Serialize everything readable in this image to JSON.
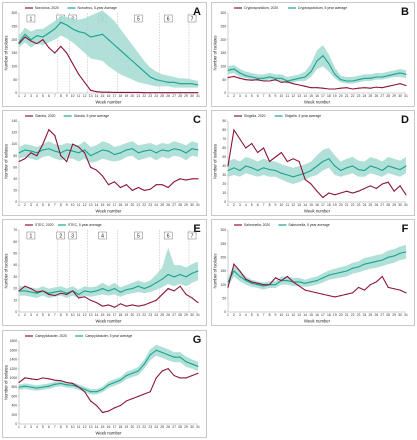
{
  "colors": {
    "current": "#8b1538",
    "average": "#1aa38f",
    "band": "#a9ddd4"
  },
  "chart_data": [
    {
      "label": "A",
      "type": "line",
      "legend": [
        "Norovirus, 2020",
        "Norovirus, 5-year Average"
      ],
      "ylabel": "Number of isolates",
      "xlabel": "Week number",
      "ylim": [
        0,
        300
      ],
      "yticks": [
        0,
        50,
        100,
        150,
        200,
        250,
        300
      ],
      "period_labels": [
        "1",
        "2",
        "3",
        "4",
        "5",
        "6",
        "7"
      ],
      "period_weeks": [
        3,
        8,
        10,
        15,
        21,
        26,
        30
      ],
      "period_boundaries": [
        7,
        9,
        12,
        17,
        24,
        29
      ],
      "weeks": [
        1,
        2,
        3,
        4,
        5,
        6,
        7,
        8,
        9,
        10,
        11,
        12,
        13,
        14,
        15,
        16,
        17,
        18,
        19,
        20,
        21,
        22,
        23,
        24,
        25,
        26,
        27,
        28,
        29,
        30,
        31
      ],
      "current": [
        185,
        210,
        195,
        185,
        200,
        170,
        150,
        175,
        150,
        110,
        70,
        40,
        10,
        5,
        3,
        3,
        2,
        2,
        2,
        2,
        2,
        1,
        1,
        1,
        1,
        1,
        1,
        1,
        1,
        1,
        1
      ],
      "average": [
        190,
        220,
        200,
        215,
        210,
        225,
        240,
        265,
        255,
        240,
        230,
        225,
        210,
        215,
        220,
        200,
        180,
        160,
        140,
        120,
        100,
        80,
        60,
        50,
        45,
        40,
        40,
        35,
        35,
        35,
        30
      ],
      "band_low": [
        170,
        190,
        170,
        185,
        180,
        190,
        200,
        215,
        205,
        190,
        170,
        150,
        130,
        125,
        120,
        100,
        85,
        70,
        60,
        50,
        40,
        35,
        30,
        25,
        25,
        25,
        20,
        20,
        20,
        20,
        20
      ],
      "band_high": [
        215,
        245,
        230,
        240,
        240,
        255,
        270,
        290,
        285,
        280,
        275,
        280,
        290,
        300,
        310,
        290,
        270,
        240,
        210,
        180,
        150,
        120,
        95,
        80,
        70,
        65,
        60,
        55,
        55,
        50,
        45
      ]
    },
    {
      "label": "B",
      "type": "line",
      "legend": [
        "Cryptosporidium, 2020",
        "Cryptosporidium, 5 year average"
      ],
      "ylabel": "Number of isolates",
      "xlabel": "Week number",
      "ylim": [
        0,
        300
      ],
      "yticks": [
        0,
        50,
        100,
        150,
        200,
        250,
        300
      ],
      "weeks": [
        1,
        2,
        3,
        4,
        5,
        6,
        7,
        8,
        9,
        10,
        11,
        12,
        13,
        14,
        15,
        16,
        17,
        18,
        19,
        20,
        21,
        22,
        23,
        24,
        25,
        26,
        27,
        28,
        29,
        30,
        31
      ],
      "current": [
        58,
        62,
        55,
        50,
        48,
        50,
        45,
        45,
        50,
        40,
        42,
        35,
        30,
        25,
        20,
        20,
        18,
        15,
        15,
        18,
        20,
        15,
        18,
        20,
        18,
        22,
        20,
        25,
        30,
        35,
        28
      ],
      "average": [
        85,
        90,
        75,
        65,
        60,
        55,
        55,
        60,
        55,
        55,
        45,
        50,
        55,
        60,
        80,
        120,
        140,
        110,
        70,
        50,
        45,
        45,
        50,
        55,
        55,
        60,
        60,
        65,
        70,
        75,
        70
      ],
      "band_low": [
        70,
        75,
        60,
        55,
        50,
        45,
        45,
        50,
        45,
        45,
        35,
        40,
        45,
        45,
        60,
        90,
        100,
        80,
        55,
        40,
        35,
        35,
        40,
        45,
        45,
        50,
        50,
        55,
        60,
        60,
        55
      ],
      "band_high": [
        100,
        105,
        90,
        80,
        75,
        70,
        70,
        75,
        70,
        70,
        60,
        65,
        70,
        80,
        110,
        160,
        180,
        145,
        95,
        65,
        60,
        60,
        65,
        70,
        70,
        75,
        75,
        80,
        85,
        90,
        85
      ]
    },
    {
      "label": "C",
      "type": "line",
      "legend": [
        "Giardia, 2020",
        "Giardia, 5 year average"
      ],
      "ylabel": "Number of isolates",
      "xlabel": "Week number",
      "ylim": [
        0,
        140
      ],
      "yticks": [
        0,
        20,
        40,
        60,
        80,
        100,
        120,
        140
      ],
      "weeks": [
        1,
        2,
        3,
        4,
        5,
        6,
        7,
        8,
        9,
        10,
        11,
        12,
        13,
        14,
        15,
        16,
        17,
        18,
        19,
        20,
        21,
        22,
        23,
        24,
        25,
        26,
        27,
        28,
        29,
        30,
        31
      ],
      "current": [
        70,
        75,
        85,
        80,
        100,
        125,
        115,
        80,
        70,
        100,
        95,
        85,
        60,
        55,
        45,
        30,
        35,
        25,
        30,
        20,
        25,
        20,
        22,
        30,
        30,
        25,
        35,
        40,
        38,
        40,
        40
      ],
      "average": [
        85,
        90,
        88,
        85,
        90,
        92,
        88,
        85,
        90,
        88,
        85,
        90,
        80,
        85,
        90,
        88,
        82,
        85,
        90,
        92,
        85,
        88,
        90,
        85,
        90,
        88,
        92,
        90,
        85,
        92,
        90
      ],
      "band_low": [
        75,
        78,
        75,
        72,
        78,
        80,
        75,
        72,
        75,
        75,
        70,
        75,
        68,
        70,
        75,
        72,
        70,
        72,
        78,
        80,
        72,
        75,
        78,
        72,
        78,
        75,
        80,
        78,
        72,
        80,
        78
      ],
      "band_high": [
        95,
        100,
        98,
        95,
        100,
        105,
        100,
        98,
        102,
        100,
        98,
        105,
        95,
        98,
        105,
        102,
        95,
        98,
        102,
        105,
        98,
        100,
        102,
        98,
        102,
        100,
        105,
        102,
        98,
        105,
        102
      ]
    },
    {
      "label": "D",
      "type": "line",
      "legend": [
        "Shigella, 2020",
        "Shigella, 5 year average"
      ],
      "ylabel": "Number of isolates",
      "xlabel": "Week number",
      "ylim": [
        0,
        90
      ],
      "yticks": [
        0,
        10,
        20,
        30,
        40,
        50,
        60,
        70,
        80,
        90
      ],
      "weeks": [
        1,
        2,
        3,
        4,
        5,
        6,
        7,
        8,
        9,
        10,
        11,
        12,
        13,
        14,
        15,
        16,
        17,
        18,
        19,
        20,
        21,
        22,
        23,
        24,
        25,
        26,
        27,
        28,
        29,
        30,
        31
      ],
      "current": [
        40,
        80,
        70,
        60,
        65,
        55,
        60,
        45,
        50,
        55,
        45,
        48,
        45,
        25,
        20,
        12,
        5,
        10,
        8,
        10,
        12,
        10,
        12,
        15,
        18,
        15,
        20,
        22,
        12,
        18,
        8
      ],
      "average": [
        35,
        38,
        35,
        40,
        38,
        35,
        38,
        36,
        35,
        32,
        30,
        28,
        30,
        32,
        35,
        40,
        45,
        48,
        40,
        35,
        38,
        40,
        36,
        35,
        40,
        38,
        35,
        40,
        38,
        36,
        40
      ],
      "band_low": [
        28,
        30,
        28,
        32,
        30,
        28,
        30,
        28,
        28,
        25,
        22,
        20,
        22,
        25,
        28,
        30,
        35,
        38,
        30,
        28,
        30,
        32,
        28,
        28,
        32,
        30,
        28,
        32,
        30,
        28,
        32
      ],
      "band_high": [
        45,
        48,
        45,
        50,
        48,
        45,
        48,
        46,
        45,
        42,
        40,
        38,
        40,
        42,
        45,
        52,
        58,
        60,
        52,
        45,
        48,
        50,
        46,
        45,
        50,
        48,
        45,
        50,
        48,
        46,
        50
      ]
    },
    {
      "label": "E",
      "type": "line",
      "legend": [
        "STEC, 2020",
        "STEC, 5 year average"
      ],
      "ylabel": "Number of isolates",
      "xlabel": "Week number",
      "ylim": [
        0,
        70
      ],
      "yticks": [
        0,
        10,
        20,
        30,
        40,
        50,
        60,
        70
      ],
      "period_labels": [
        "1",
        "2",
        "3",
        "4",
        "5",
        "6",
        "7"
      ],
      "period_weeks": [
        3,
        8,
        10,
        15,
        21,
        26,
        30
      ],
      "period_boundaries": [
        7,
        9,
        12,
        17,
        24,
        29
      ],
      "weeks": [
        1,
        2,
        3,
        4,
        5,
        6,
        7,
        8,
        9,
        10,
        11,
        12,
        13,
        14,
        15,
        16,
        17,
        18,
        19,
        20,
        21,
        22,
        23,
        24,
        25,
        26,
        27,
        28,
        29,
        30,
        31
      ],
      "current": [
        18,
        22,
        20,
        17,
        18,
        15,
        14,
        16,
        15,
        18,
        12,
        13,
        10,
        8,
        5,
        6,
        4,
        7,
        5,
        6,
        5,
        6,
        8,
        10,
        15,
        20,
        18,
        22,
        15,
        12,
        8
      ],
      "average": [
        18,
        18,
        17,
        16,
        18,
        16,
        17,
        18,
        16,
        18,
        15,
        18,
        17,
        18,
        20,
        18,
        20,
        17,
        19,
        20,
        22,
        20,
        22,
        25,
        28,
        32,
        30,
        32,
        30,
        33,
        35
      ],
      "band_low": [
        14,
        14,
        13,
        12,
        14,
        12,
        13,
        14,
        12,
        14,
        12,
        14,
        13,
        14,
        15,
        14,
        15,
        13,
        15,
        16,
        17,
        16,
        17,
        19,
        21,
        24,
        22,
        24,
        22,
        25,
        27
      ],
      "band_high": [
        22,
        22,
        21,
        20,
        22,
        20,
        21,
        22,
        20,
        22,
        19,
        22,
        21,
        22,
        25,
        22,
        25,
        21,
        23,
        25,
        27,
        25,
        27,
        32,
        38,
        55,
        40,
        40,
        38,
        41,
        43
      ]
    },
    {
      "label": "F",
      "type": "line",
      "legend": [
        "Salmonella, 2020",
        "Salmonella, 5 year average"
      ],
      "ylabel": "Number of isolates",
      "xlabel": "Week number",
      "ylim": [
        0,
        300
      ],
      "yticks": [
        0,
        50,
        100,
        150,
        200,
        250,
        300
      ],
      "weeks": [
        1,
        2,
        3,
        4,
        5,
        6,
        7,
        8,
        9,
        10,
        11,
        12,
        13,
        14,
        15,
        16,
        17,
        18,
        19,
        20,
        21,
        22,
        23,
        24,
        25,
        26,
        27,
        28,
        29,
        30,
        31
      ],
      "current": [
        90,
        175,
        150,
        120,
        110,
        105,
        100,
        100,
        125,
        115,
        130,
        110,
        95,
        80,
        75,
        70,
        65,
        60,
        55,
        60,
        65,
        70,
        90,
        80,
        100,
        110,
        130,
        90,
        85,
        80,
        70
      ],
      "average": [
        110,
        150,
        130,
        115,
        105,
        100,
        95,
        100,
        100,
        115,
        115,
        110,
        110,
        105,
        110,
        115,
        125,
        135,
        140,
        145,
        150,
        160,
        165,
        175,
        180,
        185,
        190,
        200,
        205,
        215,
        220
      ],
      "band_low": [
        95,
        130,
        112,
        100,
        92,
        88,
        82,
        88,
        88,
        100,
        100,
        95,
        95,
        92,
        95,
        100,
        108,
        118,
        122,
        126,
        130,
        140,
        145,
        152,
        158,
        162,
        168,
        175,
        180,
        190,
        195
      ],
      "band_high": [
        125,
        170,
        148,
        130,
        118,
        112,
        108,
        112,
        112,
        130,
        130,
        125,
        125,
        118,
        125,
        130,
        142,
        152,
        158,
        164,
        170,
        180,
        185,
        198,
        202,
        208,
        212,
        225,
        230,
        240,
        245
      ]
    },
    {
      "label": "G",
      "type": "line",
      "legend": [
        "Campylobacter, 2020",
        "Campylobacter, 5 year average"
      ],
      "ylabel": "Number of isolates",
      "xlabel": "Week number",
      "ylim": [
        0,
        1800
      ],
      "yticks": [
        0,
        200,
        400,
        600,
        800,
        1000,
        1200,
        1400,
        1600,
        1800
      ],
      "weeks": [
        1,
        2,
        3,
        4,
        5,
        6,
        7,
        8,
        9,
        10,
        11,
        12,
        13,
        14,
        15,
        16,
        17,
        18,
        19,
        20,
        21,
        22,
        23,
        24,
        25,
        26,
        27,
        28,
        29,
        30,
        31
      ],
      "current": [
        900,
        1000,
        980,
        960,
        1000,
        980,
        950,
        940,
        900,
        880,
        800,
        700,
        500,
        400,
        250,
        280,
        350,
        400,
        500,
        550,
        600,
        650,
        700,
        1000,
        1150,
        1200,
        1050,
        1000,
        1000,
        1050,
        1100
      ],
      "average": [
        800,
        820,
        800,
        780,
        800,
        820,
        860,
        880,
        850,
        840,
        800,
        750,
        700,
        700,
        750,
        850,
        900,
        950,
        1050,
        1100,
        1150,
        1300,
        1500,
        1600,
        1550,
        1500,
        1450,
        1450,
        1350,
        1300,
        1250
      ],
      "band_low": [
        740,
        760,
        740,
        720,
        740,
        760,
        800,
        820,
        790,
        780,
        740,
        690,
        640,
        640,
        690,
        780,
        830,
        880,
        970,
        1020,
        1060,
        1200,
        1380,
        1480,
        1430,
        1380,
        1340,
        1340,
        1240,
        1200,
        1150
      ],
      "band_high": [
        860,
        880,
        860,
        840,
        860,
        880,
        920,
        940,
        910,
        900,
        860,
        810,
        760,
        760,
        810,
        920,
        970,
        1020,
        1130,
        1180,
        1240,
        1400,
        1620,
        1720,
        1670,
        1620,
        1560,
        1560,
        1460,
        1400,
        1350
      ]
    }
  ]
}
